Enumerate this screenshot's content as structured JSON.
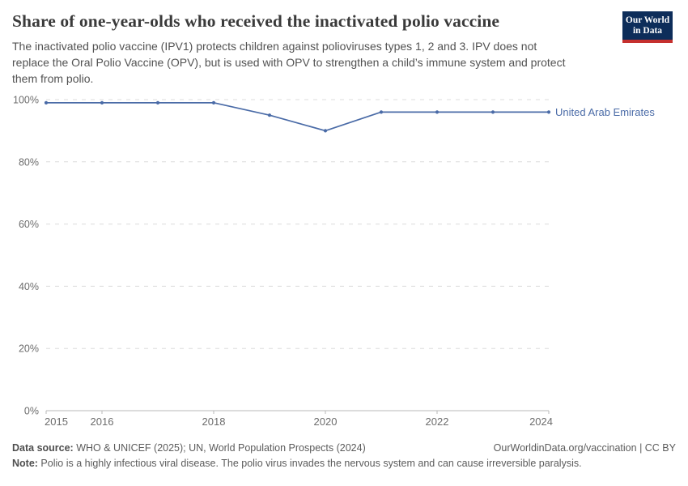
{
  "header": {
    "title": "Share of one-year-olds who received the inactivated polio vaccine",
    "subtitle": "The inactivated polio vaccine (IPV1) protects children against polioviruses types 1, 2 and 3. IPV does not\nreplace the Oral Polio Vaccine (OPV), but is used with OPV to strengthen a child’s immune system and protect\nthem from polio.",
    "logo": {
      "line1": "Our World",
      "line2": "in Data",
      "bg_color": "#0d2d5a",
      "accent_color": "#c5302e"
    }
  },
  "chart_data": {
    "type": "line",
    "title": "Share of one-year-olds who received the inactivated polio vaccine",
    "x": [
      2015,
      2016,
      2017,
      2018,
      2019,
      2020,
      2021,
      2022,
      2023,
      2024
    ],
    "series": [
      {
        "name": "United Arab Emirates",
        "color": "#4a6ba7",
        "values": [
          99,
          99,
          99,
          99,
          95,
          90,
          96,
          96,
          96,
          96
        ]
      }
    ],
    "xlim": [
      2015,
      2024
    ],
    "ylim": [
      0,
      100
    ],
    "x_ticks": [
      2015,
      2016,
      2018,
      2020,
      2022,
      2024
    ],
    "x_tick_labels": [
      "2015",
      "2016",
      "2018",
      "2020",
      "2022",
      "2024"
    ],
    "y_ticks": [
      0,
      20,
      40,
      60,
      80,
      100
    ],
    "y_tick_labels": [
      "0%",
      "20%",
      "40%",
      "60%",
      "80%",
      "100%"
    ],
    "grid": "horizontal-dashed",
    "legend_position": "inline-right-of-line",
    "style": {
      "grid_color": "#dcdcdc",
      "axis_color": "#b8b8b8",
      "tick_text_color": "#6d6d6d",
      "marker_radius": 2.1,
      "line_width": 1.7
    }
  },
  "footer": {
    "source_label": "Data source:",
    "source_text": " WHO & UNICEF (2025); UN, World Population Prospects (2024)",
    "rights_text": "OurWorldinData.org/vaccination | CC BY",
    "note_label": "Note:",
    "note_text": " Polio is a highly infectious viral disease. The polio virus invades the nervous system and can cause irreversible paralysis."
  }
}
